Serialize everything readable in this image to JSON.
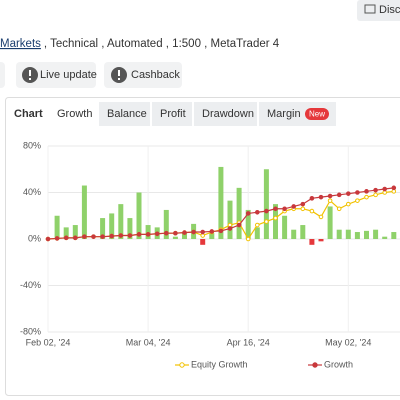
{
  "header": {
    "discuss_button": "Discu",
    "breadcrumb_link": "Markets",
    "breadcrumb_rest": ", Technical , Automated , 1:500 , MetaTrader 4"
  },
  "actions": [
    "Live update",
    "Cashback"
  ],
  "tabs": {
    "label": "Chart",
    "items": [
      "Growth",
      "Balance",
      "Profit",
      "Drawdown",
      "Margin"
    ],
    "active": 0,
    "badge": "New"
  },
  "chart_data": {
    "type": "line",
    "categories": [
      "Feb 02, '24",
      null,
      null,
      null,
      null,
      null,
      null,
      null,
      null,
      null,
      null,
      "Mar 04, '24",
      null,
      null,
      null,
      null,
      null,
      null,
      null,
      null,
      null,
      null,
      "Apr 16, '24",
      null,
      null,
      null,
      null,
      null,
      null,
      null,
      null,
      null,
      null,
      "May 02, '24",
      null,
      null,
      null,
      null,
      null
    ],
    "ylim": [
      -80,
      80
    ],
    "yticks": [
      {
        "value": 80,
        "label": "80%"
      },
      {
        "value": 40,
        "label": "40%"
      },
      {
        "value": 0,
        "label": "0%"
      },
      {
        "value": -40,
        "label": "-40%"
      },
      {
        "value": -80,
        "label": "-80%"
      }
    ],
    "grid": true,
    "bars": {
      "color": "#8fd16a",
      "negative_color": "#e5383b",
      "values": [
        0,
        20,
        10,
        12,
        46,
        0,
        18,
        22,
        30,
        18,
        40,
        12,
        10,
        25,
        2,
        5,
        13,
        -5,
        5,
        62,
        33,
        44,
        25,
        10,
        60,
        30,
        20,
        8,
        12,
        -5,
        -2,
        28,
        8,
        8,
        6,
        7,
        8,
        2,
        6
      ]
    },
    "series": [
      {
        "name": "Equity Growth",
        "color": "#f2c200",
        "values": [
          0,
          0.5,
          1,
          1,
          2,
          2,
          2,
          2.5,
          3,
          3,
          4,
          4,
          4.5,
          5,
          5,
          5.5,
          6,
          3,
          6,
          8,
          12,
          14,
          0,
          12,
          15,
          18,
          24,
          26,
          26,
          24,
          19,
          33,
          26,
          30,
          33,
          36,
          38,
          40,
          41
        ]
      },
      {
        "name": "Growth",
        "color": "#c8383c",
        "values": [
          0,
          0.5,
          1,
          1,
          2,
          2,
          2,
          2.5,
          3,
          3,
          4,
          4,
          4.5,
          5,
          5,
          5.5,
          6,
          6,
          6.5,
          7,
          9,
          12,
          22,
          23,
          24,
          26,
          26,
          28,
          30,
          35,
          36,
          37,
          38,
          39,
          40,
          41,
          42,
          43,
          44
        ]
      }
    ]
  }
}
